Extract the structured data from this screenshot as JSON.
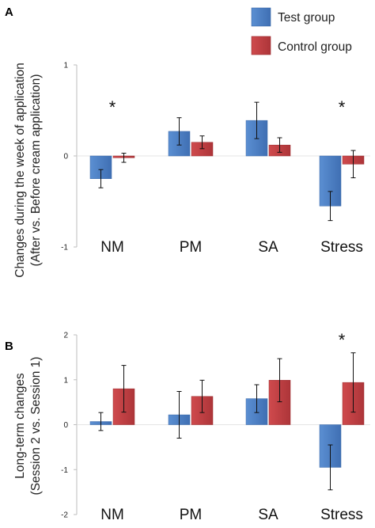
{
  "legend": {
    "items": [
      {
        "name": "Test group",
        "color": "#4a7ec4"
      },
      {
        "name": "Control group",
        "color": "#c0282c"
      }
    ]
  },
  "chart_data": [
    {
      "type": "bar",
      "panel": "A",
      "categories": [
        "NM",
        "PM",
        "SA",
        "Stress"
      ],
      "ylabel_lines": [
        "Changes during the week of application",
        "(After vs. Before cream application)"
      ],
      "ylim": [
        -1,
        1
      ],
      "yticks": [
        "1",
        "0",
        "-1"
      ],
      "series": [
        {
          "name": "Test group",
          "color": "#4a7ec4",
          "values": [
            -0.25,
            0.27,
            0.39,
            -0.55
          ],
          "errors": [
            0.1,
            0.15,
            0.2,
            0.16
          ]
        },
        {
          "name": "Control group",
          "color": "#c0282c",
          "values": [
            -0.02,
            0.15,
            0.12,
            -0.09
          ],
          "errors": [
            0.05,
            0.07,
            0.08,
            0.15
          ]
        }
      ],
      "annotations": [
        {
          "text": "*",
          "category": "NM"
        },
        {
          "text": "*",
          "category": "Stress"
        }
      ]
    },
    {
      "type": "bar",
      "panel": "B",
      "categories": [
        "NM",
        "PM",
        "SA",
        "Stress"
      ],
      "ylabel_lines": [
        "Long-term changes",
        "(Session 2 vs. Session 1)"
      ],
      "ylim": [
        -2,
        2
      ],
      "yticks": [
        "2",
        "1",
        "0",
        "-1",
        "-2"
      ],
      "series": [
        {
          "name": "Test group",
          "color": "#4a7ec4",
          "values": [
            0.07,
            0.22,
            0.58,
            -0.95
          ],
          "errors": [
            0.2,
            0.52,
            0.31,
            0.5
          ]
        },
        {
          "name": "Control group",
          "color": "#c0282c",
          "values": [
            0.8,
            0.63,
            0.99,
            0.94
          ],
          "errors": [
            0.52,
            0.36,
            0.48,
            0.66
          ]
        }
      ],
      "annotations": [
        {
          "text": "*",
          "category": "Stress"
        }
      ]
    }
  ]
}
